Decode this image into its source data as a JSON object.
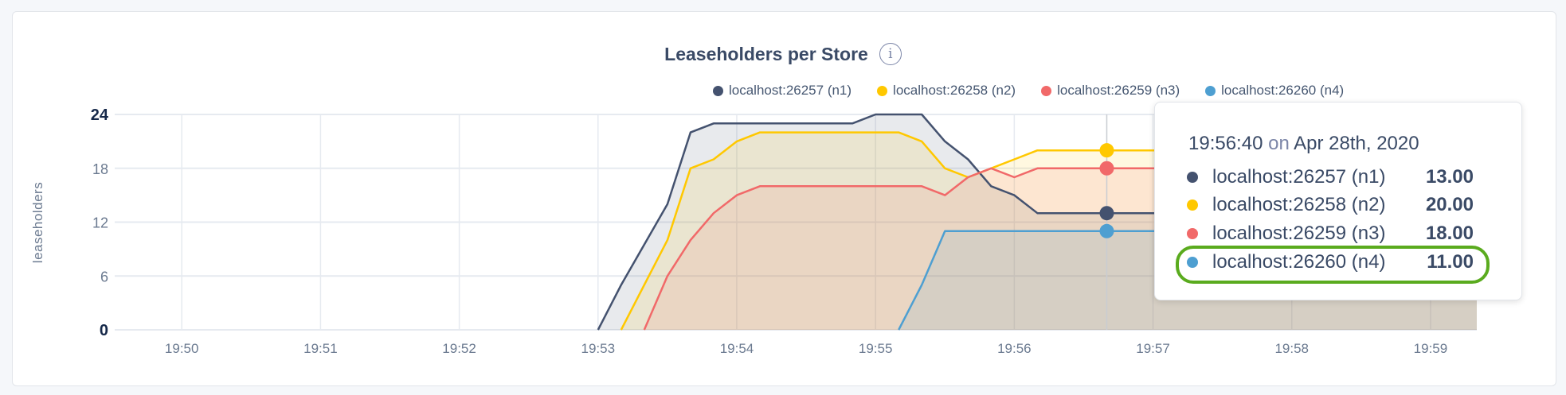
{
  "chart_data": {
    "type": "area",
    "title": "Leaseholders per Store",
    "ylabel": "leaseholders",
    "xlabel": "",
    "ylim": [
      0,
      24
    ],
    "yticks": [
      "0",
      "6",
      "12",
      "18",
      "24"
    ],
    "xticks": [
      "19:50",
      "19:51",
      "19:52",
      "19:53",
      "19:54",
      "19:55",
      "19:56",
      "19:57",
      "19:58",
      "19:59"
    ],
    "xlim": [
      "19:49:31",
      "19:59:20"
    ],
    "grid": true,
    "legend": "top-right",
    "x": [
      "19:53:00",
      "19:53:10",
      "19:53:20",
      "19:53:30",
      "19:53:40",
      "19:53:50",
      "19:54:00",
      "19:54:10",
      "19:54:20",
      "19:54:30",
      "19:54:40",
      "19:54:50",
      "19:55:00",
      "19:55:10",
      "19:55:20",
      "19:55:30",
      "19:55:40",
      "19:55:50",
      "19:56:00",
      "19:56:10",
      "19:56:20",
      "19:56:30",
      "19:56:40",
      "19:56:50",
      "19:57:00",
      "19:57:10",
      "19:57:20",
      "19:57:30",
      "19:57:40",
      "19:57:50",
      "19:58:00",
      "19:58:10",
      "19:58:20",
      "19:58:30",
      "19:58:40",
      "19:58:50",
      "19:59:00",
      "19:59:10",
      "19:59:20"
    ],
    "series": [
      {
        "name": "localhost:26257 (n1)",
        "color": "#44526f",
        "values": [
          0,
          5,
          9.5,
          14,
          22,
          23,
          23,
          23,
          23,
          23,
          23,
          23,
          24,
          24,
          24,
          21,
          19,
          16,
          15,
          13,
          13,
          13,
          13,
          13,
          13,
          13,
          13,
          13,
          13,
          13,
          13,
          13,
          13,
          13,
          13,
          13,
          13,
          13,
          13
        ]
      },
      {
        "name": "localhost:26258 (n2)",
        "color": "#ffc800",
        "values": [
          null,
          0,
          5,
          10,
          18,
          19,
          21,
          22,
          22,
          22,
          22,
          22,
          22,
          22,
          21,
          18,
          17,
          18,
          19,
          20,
          20,
          20,
          20,
          20,
          20,
          20,
          20,
          20,
          20,
          20,
          20,
          20,
          20,
          20,
          20,
          20,
          20,
          20,
          20
        ]
      },
      {
        "name": "localhost:26259 (n3)",
        "color": "#f16969",
        "values": [
          null,
          null,
          0,
          6,
          10,
          13,
          15,
          16,
          16,
          16,
          16,
          16,
          16,
          16,
          16,
          15,
          17,
          18,
          17,
          18,
          18,
          18,
          18,
          18,
          18,
          18,
          18,
          18,
          18,
          18,
          18,
          18,
          18,
          18,
          18,
          18,
          18,
          18,
          18
        ]
      },
      {
        "name": "localhost:26260 (n4)",
        "color": "#4e9fd1",
        "values": [
          null,
          null,
          null,
          null,
          null,
          null,
          null,
          null,
          null,
          null,
          null,
          null,
          null,
          0,
          5,
          11,
          11,
          11,
          11,
          11,
          11,
          11,
          11,
          11,
          11,
          11,
          11,
          11,
          11,
          11,
          11,
          11,
          11,
          11,
          11,
          11,
          11,
          11,
          11
        ]
      }
    ],
    "hover": {
      "x": "19:56:40"
    }
  },
  "tooltip": {
    "time": "19:56:40",
    "on": "on",
    "date": "Apr 28th, 2020",
    "rows": [
      {
        "label": "localhost:26257 (n1)",
        "value": "13.00"
      },
      {
        "label": "localhost:26258 (n2)",
        "value": "20.00"
      },
      {
        "label": "localhost:26259 (n3)",
        "value": "18.00"
      },
      {
        "label": "localhost:26260 (n4)",
        "value": "11.00"
      }
    ],
    "highlight_color": "#5aab1e"
  },
  "info_icon": "info-circle-icon",
  "info_glyph": "i"
}
